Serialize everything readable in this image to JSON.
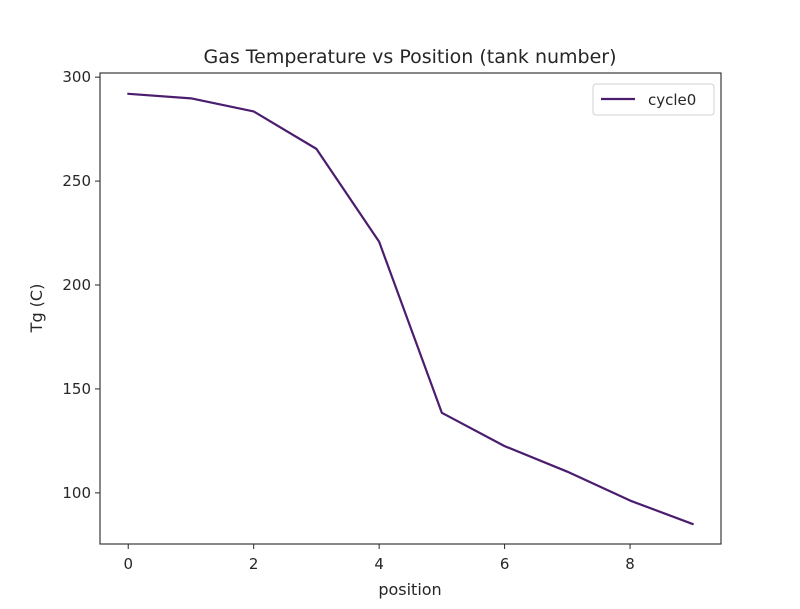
{
  "chart_data": {
    "type": "line",
    "title": "Gas Temperature vs Position (tank number)",
    "xlabel": "position",
    "ylabel": "Tg (C)",
    "xlim": [
      -0.45,
      9.45
    ],
    "ylim": [
      75.4,
      302
    ],
    "xticks": [
      0,
      2,
      4,
      6,
      8
    ],
    "yticks": [
      100,
      150,
      200,
      250,
      300
    ],
    "grid": false,
    "legend_position": "top-right",
    "series": [
      {
        "name": "cycle0",
        "color": "#4b1d6e",
        "x": [
          0,
          1,
          2,
          3,
          4,
          5,
          6,
          7,
          8,
          9
        ],
        "y": [
          292.0,
          289.8,
          283.5,
          265.5,
          220.8,
          138.5,
          122.5,
          110.2,
          96.3,
          85.0
        ]
      }
    ]
  }
}
